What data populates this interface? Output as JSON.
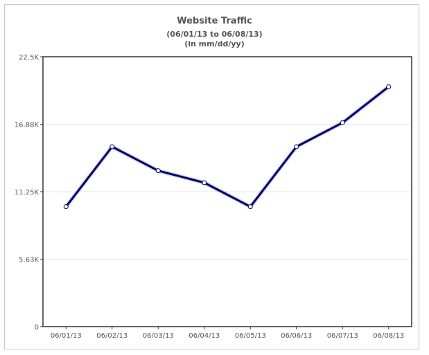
{
  "chart_data": {
    "type": "line",
    "title": "Website Traffic",
    "subtitle": "(06/01/13 to 06/08/13)",
    "subtitle2": "(in mm/dd/yy)",
    "categories": [
      "06/01/13",
      "06/02/13",
      "06/03/13",
      "06/04/13",
      "06/05/13",
      "06/06/13",
      "06/07/13",
      "06/08/13"
    ],
    "series": [
      {
        "values": [
          10000,
          15000,
          13000,
          12000,
          10000,
          15000,
          17000,
          20000
        ],
        "color": "#000066"
      }
    ],
    "ylim": [
      0,
      22500
    ],
    "yticks": [
      0,
      5625,
      11250,
      16875,
      22500
    ],
    "ytick_labels": [
      "0",
      "5.63K",
      "11.25K",
      "16.88K",
      "22.5K"
    ],
    "xlabel": "",
    "ylabel": "",
    "grid": true,
    "legend": "none"
  }
}
